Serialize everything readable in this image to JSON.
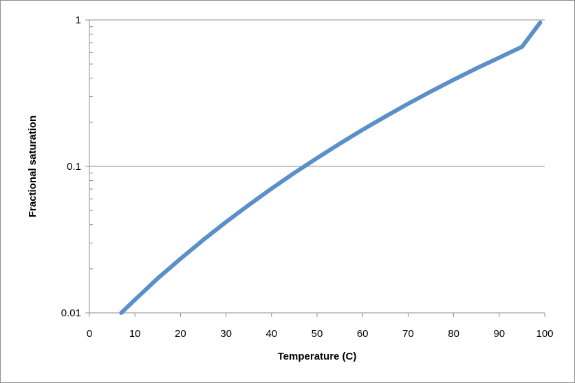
{
  "chart_data": {
    "type": "line",
    "title": "",
    "xlabel": "Temperature (C)",
    "ylabel": "Fractional saturation",
    "xlim": [
      0,
      100
    ],
    "ylim": [
      0.01,
      1
    ],
    "y_scale": "log",
    "x_ticks": [
      0,
      10,
      20,
      30,
      40,
      50,
      60,
      70,
      80,
      90,
      100
    ],
    "x_tick_labels": [
      "0",
      "10",
      "20",
      "30",
      "40",
      "50",
      "60",
      "70",
      "80",
      "90",
      "100"
    ],
    "y_ticks": [
      0.01,
      0.1,
      1
    ],
    "y_tick_labels": [
      "0.01",
      "0.1",
      "1"
    ],
    "grid": "horizontal major",
    "legend": "none",
    "series": [
      {
        "color": "#5b8fc9",
        "x": [
          7,
          10,
          15,
          20,
          25,
          30,
          35,
          40,
          45,
          50,
          55,
          60,
          65,
          70,
          75,
          80,
          85,
          90,
          95,
          99
        ],
        "y": [
          0.01,
          0.0123,
          0.0172,
          0.0234,
          0.0315,
          0.0417,
          0.0545,
          0.0705,
          0.0902,
          0.114,
          0.143,
          0.178,
          0.219,
          0.268,
          0.325,
          0.391,
          0.467,
          0.553,
          0.655,
          0.96
        ]
      }
    ]
  }
}
